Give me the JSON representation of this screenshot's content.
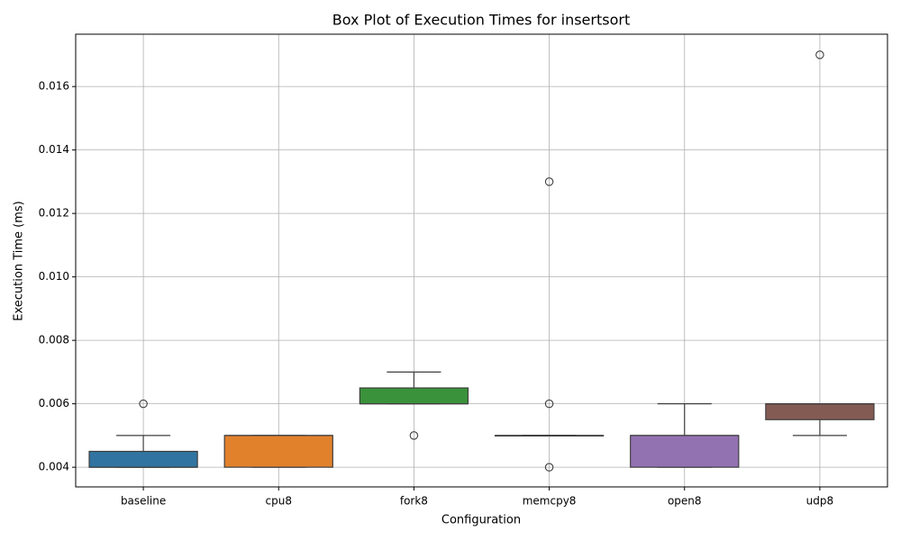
{
  "chart_data": {
    "type": "box",
    "title": "Box Plot of Execution Times for insertsort",
    "x_label": "Configuration",
    "y_label": "Execution Time (ms)",
    "categories": [
      "baseline",
      "cpu8",
      "fork8",
      "memcpy8",
      "open8",
      "udp8"
    ],
    "colors": [
      "#3274a1",
      "#e1812c",
      "#3a923a",
      "#c03d3e",
      "#9372b2",
      "#845b53"
    ],
    "boxes": [
      {
        "whislo": 0.004,
        "q1": 0.004,
        "median": 0.004,
        "q3": 0.0045,
        "whishi": 0.005,
        "fliers": [
          0.006
        ]
      },
      {
        "whislo": 0.004,
        "q1": 0.004,
        "median": 0.005,
        "q3": 0.005,
        "whishi": 0.005,
        "fliers": []
      },
      {
        "whislo": 0.006,
        "q1": 0.006,
        "median": 0.006,
        "q3": 0.0065,
        "whishi": 0.007,
        "fliers": [
          0.005
        ]
      },
      {
        "whislo": 0.005,
        "q1": 0.005,
        "median": 0.005,
        "q3": 0.005,
        "whishi": 0.005,
        "fliers": [
          0.013,
          0.006,
          0.004
        ]
      },
      {
        "whislo": 0.004,
        "q1": 0.004,
        "median": 0.005,
        "q3": 0.005,
        "whishi": 0.006,
        "fliers": []
      },
      {
        "whislo": 0.005,
        "q1": 0.0055,
        "median": 0.006,
        "q3": 0.006,
        "whishi": 0.006,
        "fliers": [
          0.017
        ]
      }
    ],
    "ylim": [
      0.00338,
      0.01765
    ],
    "yticks": [
      0.004,
      0.006,
      0.008,
      {
        "value": 0.01,
        "label": "0.010"
      },
      0.012,
      0.014,
      0.016
    ],
    "grid": true
  }
}
